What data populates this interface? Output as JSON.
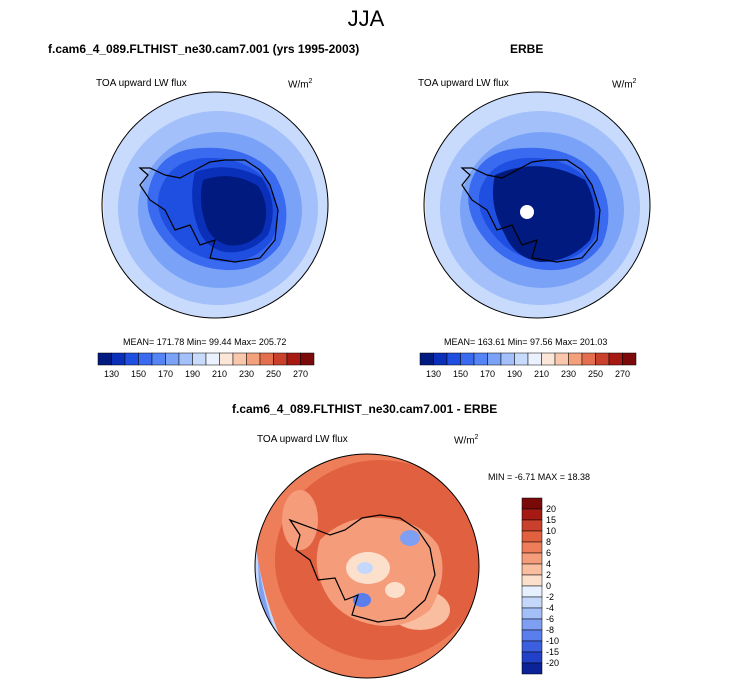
{
  "page_title": "JJA",
  "chart_data": [
    {
      "type": "heatmap",
      "title": "f.cam6_4_089.FLTHIST_ne30.cam7.001 (yrs 1995-2003)",
      "variable_label": "TOA upward LW flux",
      "units": "W/m2",
      "stats_text": "MEAN= 171.78  Min=  99.44  Max= 205.72",
      "stats": {
        "mean": 171.78,
        "min": 99.44,
        "max": 205.72
      },
      "projection": "south-polar-stereographic",
      "colorbar": {
        "orientation": "horizontal",
        "levels": [
          130,
          140,
          150,
          160,
          170,
          180,
          190,
          200,
          210,
          220,
          230,
          240,
          250,
          260,
          270
        ],
        "tick_labels": [
          "130",
          "150",
          "170",
          "190",
          "210",
          "230",
          "250",
          "270"
        ],
        "colors": [
          "#001a80",
          "#0a2fb8",
          "#1f4fe0",
          "#3a6af0",
          "#5585f5",
          "#7aa3f8",
          "#a3c0fa",
          "#c8dbfc",
          "#eaf1ff",
          "#fce6d8",
          "#f9c7ab",
          "#f3a07c",
          "#e46f4f",
          "#c9402c",
          "#a71a14",
          "#7d0a0a"
        ]
      }
    },
    {
      "type": "heatmap",
      "title": "ERBE",
      "variable_label": "TOA upward LW flux",
      "units": "W/m2",
      "stats_text": "MEAN= 163.61  Min=  97.56  Max= 201.03",
      "stats": {
        "mean": 163.61,
        "min": 97.56,
        "max": 201.03
      },
      "projection": "south-polar-stereographic",
      "colorbar": {
        "orientation": "horizontal",
        "levels": [
          130,
          140,
          150,
          160,
          170,
          180,
          190,
          200,
          210,
          220,
          230,
          240,
          250,
          260,
          270
        ],
        "tick_labels": [
          "130",
          "150",
          "170",
          "190",
          "210",
          "230",
          "250",
          "270"
        ],
        "colors": [
          "#001a80",
          "#0a2fb8",
          "#1f4fe0",
          "#3a6af0",
          "#5585f5",
          "#7aa3f8",
          "#a3c0fa",
          "#c8dbfc",
          "#eaf1ff",
          "#fce6d8",
          "#f9c7ab",
          "#f3a07c",
          "#e46f4f",
          "#c9402c",
          "#a71a14",
          "#7d0a0a"
        ]
      }
    },
    {
      "type": "heatmap",
      "title": "f.cam6_4_089.FLTHIST_ne30.cam7.001 - ERBE",
      "variable_label": "TOA upward LW flux",
      "units": "W/m2",
      "stats_text": "MIN =  -6.71  MAX =  18.38",
      "stats": {
        "min": -6.71,
        "max": 18.38
      },
      "projection": "south-polar-stereographic",
      "colorbar": {
        "orientation": "vertical",
        "levels": [
          -20,
          -15,
          -10,
          -8,
          -6,
          -4,
          -2,
          0,
          2,
          4,
          6,
          8,
          10,
          15,
          20
        ],
        "tick_labels": [
          "20",
          "15",
          "10",
          "8",
          "6",
          "4",
          "2",
          "0",
          "-2",
          "-4",
          "-6",
          "-8",
          "-10",
          "-15",
          "-20"
        ],
        "colors": [
          "#7a0a0a",
          "#a61a14",
          "#c9402c",
          "#e0603f",
          "#ee7d5a",
          "#f59c7b",
          "#f9bd9f",
          "#fde0cc",
          "#e6f0ff",
          "#c5d8fb",
          "#a3bff8",
          "#7f9ff3",
          "#5a7eec",
          "#3c5fe0",
          "#2240c8",
          "#0b2396"
        ]
      }
    }
  ]
}
